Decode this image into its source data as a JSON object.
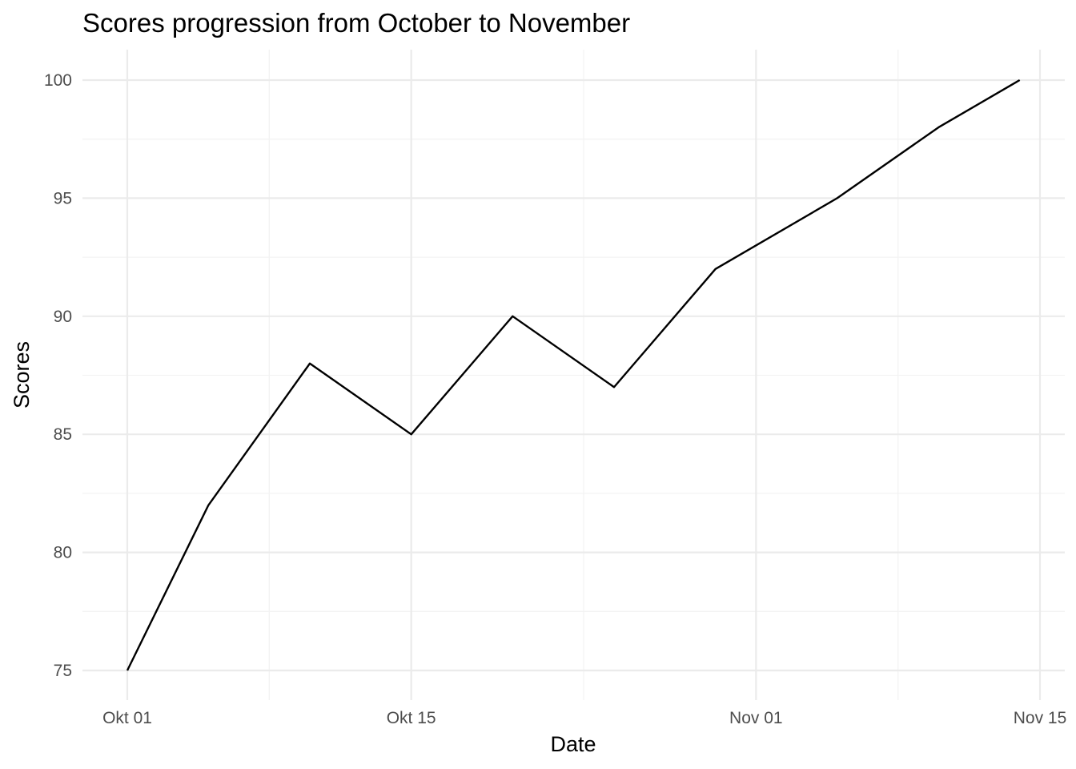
{
  "chart_data": {
    "type": "line",
    "title": "Scores progression from October to November",
    "xlabel": "Date",
    "ylabel": "Scores",
    "x_tick_labels": [
      "Okt 01",
      "Okt 15",
      "Nov 01",
      "Nov 15"
    ],
    "x_tick_dates": [
      "2023-10-01",
      "2023-10-15",
      "2023-11-01",
      "2023-11-15"
    ],
    "y_tick_labels": [
      "75",
      "80",
      "85",
      "90",
      "95",
      "100"
    ],
    "ylim": [
      75,
      100
    ],
    "grid": true,
    "series": [
      {
        "x": [
          "2023-10-01",
          "2023-10-05",
          "2023-10-10",
          "2023-10-15",
          "2023-10-20",
          "2023-10-25",
          "2023-10-30",
          "2023-11-05",
          "2023-11-10",
          "2023-11-14"
        ],
        "y": [
          75,
          82,
          88,
          85,
          90,
          87,
          92,
          95,
          98,
          100
        ]
      }
    ],
    "colors": {
      "line": "#000000",
      "grid": "#ebebeb",
      "tick_text": "#4d4d4d"
    }
  }
}
